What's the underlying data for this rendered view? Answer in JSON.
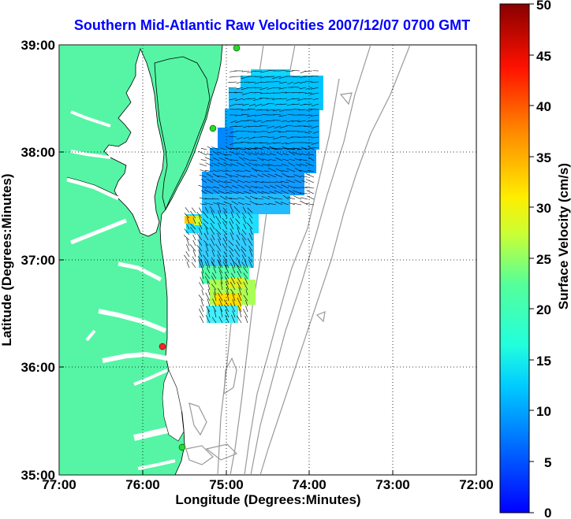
{
  "title": "Southern Mid-Atlantic Raw Velocities 2007/12/07 0700 GMT",
  "map": {
    "xlabel": "Longitude (Degrees:Minutes)",
    "ylabel": "Latitude (Degrees:Minutes)",
    "xticks": [
      "77:00",
      "76:00",
      "75:00",
      "74:00",
      "73:00",
      "72:00"
    ],
    "yticks": [
      "39:00",
      "38:00",
      "37:00",
      "36:00",
      "35:00"
    ],
    "lon_range": [
      -77,
      -72
    ],
    "lat_range": [
      35,
      39
    ],
    "land_color": "#55f5a5",
    "bathymetry_color": "#999999",
    "stations": [
      {
        "status": "active",
        "color": "#22dd22"
      },
      {
        "status": "active",
        "color": "#22dd22"
      },
      {
        "status": "offline",
        "color": "#ff2222"
      },
      {
        "status": "active",
        "color": "#22dd22"
      }
    ]
  },
  "colorbar": {
    "label": "Surface Velocity (cm/s)",
    "ticks": [
      "50",
      "45",
      "40",
      "35",
      "30",
      "25",
      "20",
      "15",
      "10",
      "5",
      "0"
    ],
    "min": 0,
    "max": 50,
    "colormap": "jet"
  }
}
